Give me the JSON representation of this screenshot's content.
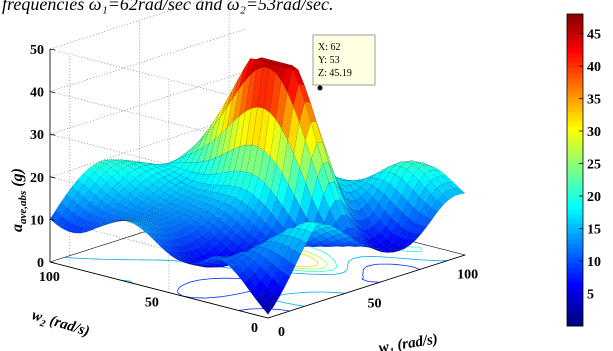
{
  "caption_text": "frequencies ω₁=62rad/sec and ω₂=53rad/sec.",
  "chart_data": {
    "type": "surface3d",
    "title": "",
    "xlabel": "w₁ (rad/s)",
    "ylabel": "w₂ (rad/s)",
    "zlabel": "a_ave,abs (g)",
    "xlim": [
      0,
      110
    ],
    "ylim": [
      0,
      110
    ],
    "zlim": [
      0,
      50
    ],
    "x_ticks": [
      "0",
      "50",
      "100"
    ],
    "y_ticks": [
      "0",
      "50",
      "100"
    ],
    "z_ticks": [
      "0",
      "10",
      "20",
      "30",
      "40",
      "50"
    ],
    "colorbar": {
      "ticks": [
        "5",
        "10",
        "15",
        "20",
        "25",
        "30",
        "35",
        "40",
        "45"
      ],
      "min": 0,
      "max": 48,
      "colormap": "jet"
    },
    "datatip": {
      "x_label": "X: 62",
      "y_label": "Y: 53",
      "z_label": "Z: 45.19",
      "x": 62,
      "y": 53,
      "z": 45.19
    },
    "grid": true,
    "contour_projection": true
  }
}
